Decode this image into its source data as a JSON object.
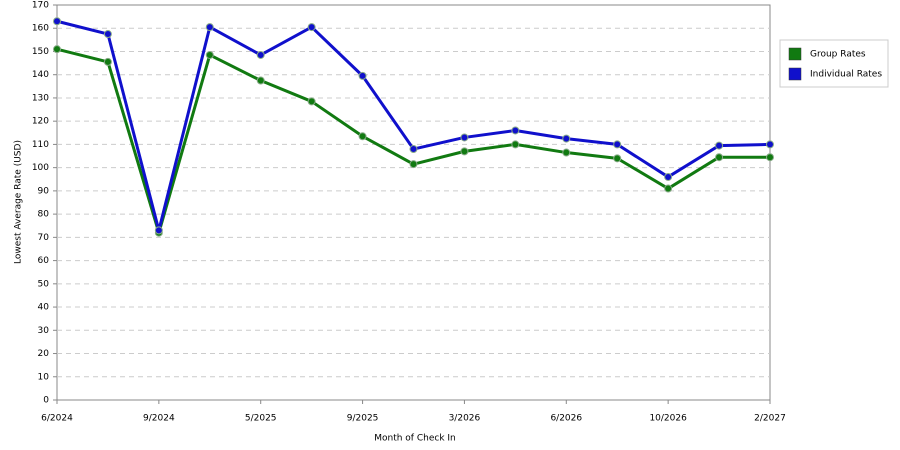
{
  "chart_data": {
    "type": "line",
    "x_label": "Month of Check In",
    "y_label": "Lowest Average Rate (USD)",
    "categories": [
      "6/2024",
      null,
      "9/2024",
      null,
      "5/2025",
      null,
      "9/2025",
      null,
      "3/2026",
      null,
      "6/2026",
      null,
      "10/2026",
      null,
      "2/2027"
    ],
    "series": [
      {
        "name": "Group Rates",
        "color": "#117a11",
        "values": [
          151,
          145.5,
          72,
          148.5,
          137.5,
          128.5,
          113.5,
          101.5,
          107,
          110,
          106.5,
          104,
          91,
          104.5,
          104.5
        ]
      },
      {
        "name": "Individual Rates",
        "color": "#1010cc",
        "values": [
          163,
          157.5,
          73,
          160.5,
          148.5,
          160.5,
          139.5,
          108,
          113,
          116,
          112.5,
          110,
          96,
          109.5,
          110
        ]
      }
    ],
    "ylim": [
      0,
      170
    ],
    "yticks": [
      0,
      10,
      20,
      30,
      40,
      50,
      60,
      70,
      80,
      90,
      100,
      110,
      120,
      130,
      140,
      150,
      160,
      170
    ],
    "grid": true
  }
}
